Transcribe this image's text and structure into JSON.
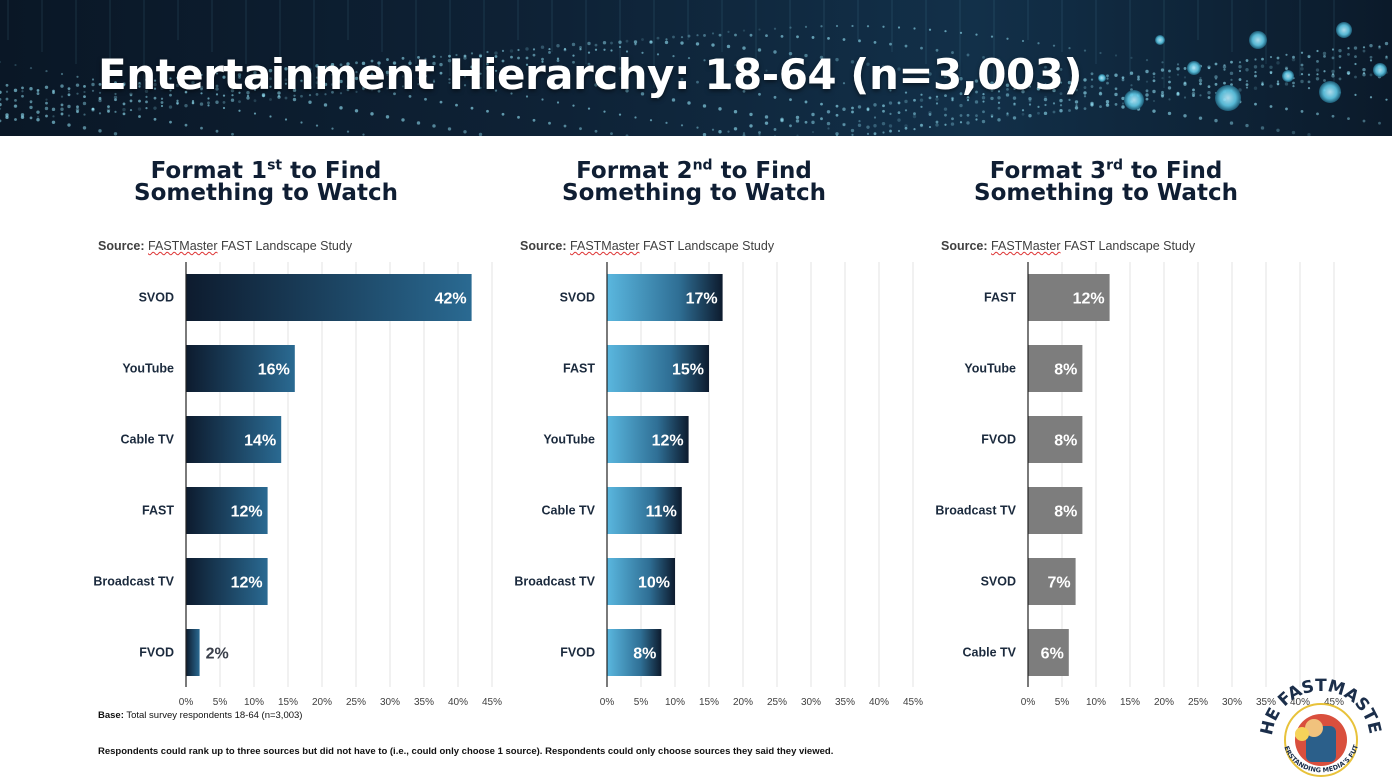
{
  "page": {
    "title": "Entertainment Hierarchy: 18-64 (n=3,003)"
  },
  "source": {
    "label": "Source:",
    "name": "FASTMaster",
    "rest": "FAST Landscape Study"
  },
  "footnotes": {
    "base_label": "Base:",
    "base_text": "Total survey respondents 18-64 (n=3,003)",
    "respondents_note": "Respondents could rank up to three sources but did not have to (i.e., could only choose 1 source). Respondents could only choose sources they said they viewed."
  },
  "logo": {
    "top_text": "THE FASTMASTER",
    "bottom_text": "UNDERSTANDING MEDIA'S FUTURE"
  },
  "colors": {
    "title": "#0f1e33",
    "chart1_dark": "#0d1b2e",
    "chart1_light": "#2a6a92",
    "chart2_light": "#5ab7df",
    "chart2_dark": "#0d1b2e",
    "chart3_gray": "#7d7d7d"
  },
  "chart_data": [
    {
      "type": "bar",
      "orientation": "horizontal",
      "title_pre": "Format 1",
      "title_sup": "st",
      "title_post": " to Find",
      "title_line2": "Something to Watch",
      "categories": [
        "SVOD",
        "YouTube",
        "Cable TV",
        "FAST",
        "Broadcast TV",
        "FVOD"
      ],
      "values": [
        42,
        16,
        14,
        12,
        12,
        2
      ],
      "value_labels": [
        "42%",
        "16%",
        "14%",
        "12%",
        "12%",
        "2%"
      ],
      "xlim": [
        0,
        45
      ],
      "ticks": [
        "0%",
        "5%",
        "10%",
        "15%",
        "20%",
        "25%",
        "30%",
        "35%",
        "40%",
        "45%"
      ],
      "color_scheme": "navy-to-teal"
    },
    {
      "type": "bar",
      "orientation": "horizontal",
      "title_pre": "Format 2",
      "title_sup": "nd",
      "title_post": " to Find",
      "title_line2": "Something to Watch",
      "categories": [
        "SVOD",
        "FAST",
        "YouTube",
        "Cable TV",
        "Broadcast TV",
        "FVOD"
      ],
      "values": [
        17,
        15,
        12,
        11,
        10,
        8
      ],
      "value_labels": [
        "17%",
        "15%",
        "12%",
        "11%",
        "10%",
        "8%"
      ],
      "xlim": [
        0,
        45
      ],
      "ticks": [
        "0%",
        "5%",
        "10%",
        "15%",
        "20%",
        "25%",
        "30%",
        "35%",
        "40%",
        "45%"
      ],
      "color_scheme": "sky-to-navy"
    },
    {
      "type": "bar",
      "orientation": "horizontal",
      "title_pre": "Format 3",
      "title_sup": "rd",
      "title_post": " to Find",
      "title_line2": "Something to Watch",
      "categories": [
        "FAST",
        "YouTube",
        "FVOD",
        "Broadcast TV",
        "SVOD",
        "Cable TV"
      ],
      "values": [
        12,
        8,
        8,
        8,
        7,
        6
      ],
      "value_labels": [
        "12%",
        "8%",
        "8%",
        "8%",
        "7%",
        "6%"
      ],
      "xlim": [
        0,
        45
      ],
      "ticks": [
        "0%",
        "5%",
        "10%",
        "15%",
        "20%",
        "25%",
        "30%",
        "35%",
        "40%",
        "45%"
      ],
      "color_scheme": "gray"
    }
  ]
}
